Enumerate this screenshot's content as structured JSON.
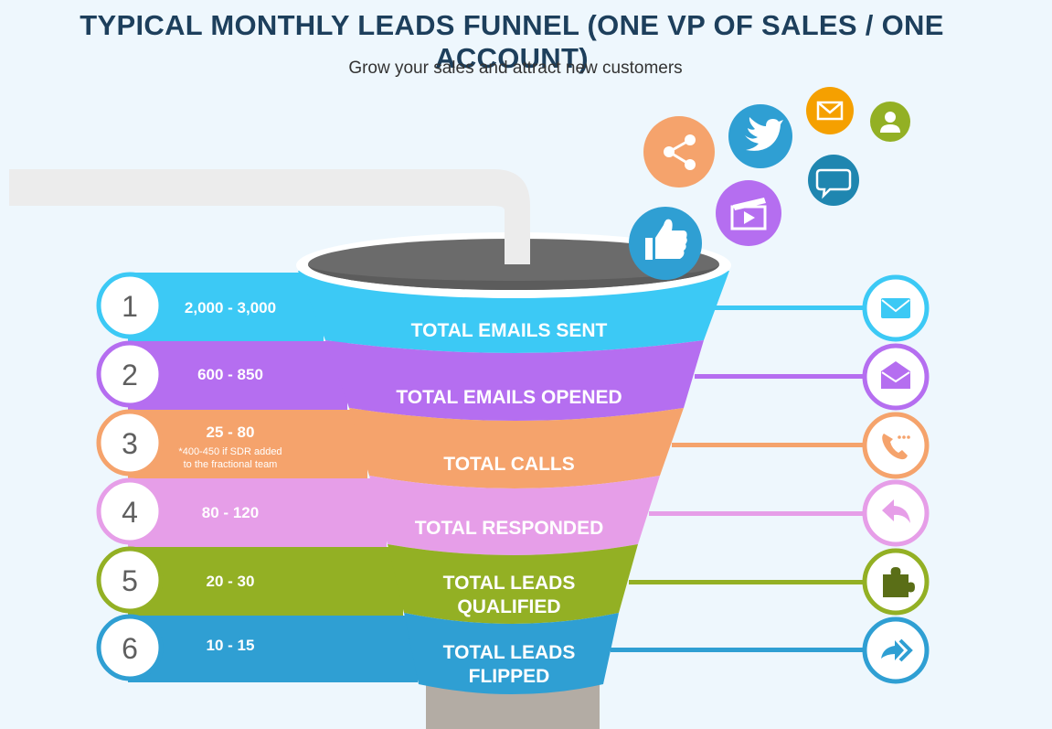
{
  "header": {
    "title": "TYPICAL MONTHLY LEADS FUNNEL (ONE VP OF SALES / ONE ACCOUNT)",
    "subtitle": "Grow your sales and attract new customers"
  },
  "stages": [
    {
      "number": "1",
      "range": "2,000 - 3,000",
      "note_line1": "",
      "note_line2": "",
      "label_line1": "TOTAL EMAILS SENT",
      "label_line2": "",
      "color": "#3cc9f5",
      "right_icon": "envelope-icon"
    },
    {
      "number": "2",
      "range": "600 - 850",
      "note_line1": "",
      "note_line2": "",
      "label_line1": "TOTAL EMAILS OPENED",
      "label_line2": "",
      "color": "#b56ef0",
      "right_icon": "open-envelope-icon"
    },
    {
      "number": "3",
      "range": "25 - 80",
      "note_line1": "*400-450 if SDR added",
      "note_line2": "to the fractional team",
      "label_line1": "TOTAL CALLS",
      "label_line2": "",
      "color": "#f5a36c",
      "right_icon": "phone-icon"
    },
    {
      "number": "4",
      "range": "80 - 120",
      "note_line1": "",
      "note_line2": "",
      "label_line1": "TOTAL RESPONDED",
      "label_line2": "",
      "color": "#e69ee8",
      "right_icon": "reply-icon"
    },
    {
      "number": "5",
      "range": "20 - 30",
      "note_line1": "",
      "note_line2": "",
      "label_line1": "TOTAL LEADS",
      "label_line2": "QUALIFIED",
      "color": "#93b024",
      "right_icon": "puzzle-icon"
    },
    {
      "number": "6",
      "range": "10 - 15",
      "note_line1": "",
      "note_line2": "",
      "label_line1": "TOTAL LEADS",
      "label_line2": "FLIPPED",
      "color": "#2f9fd3",
      "right_icon": "forward-arrows-icon"
    }
  ],
  "floating_icons": [
    "share-icon",
    "twitter-bird-icon",
    "mail-icon",
    "user-icon",
    "chat-bubble-icon",
    "video-icon",
    "thumbs-up-icon"
  ],
  "colors": {
    "background": "#eef7fd",
    "title": "#1d3f5c",
    "pipe": "#ececec",
    "funnel_inside": "#6b6b6b",
    "funnel_stem": "#b3aca4"
  }
}
